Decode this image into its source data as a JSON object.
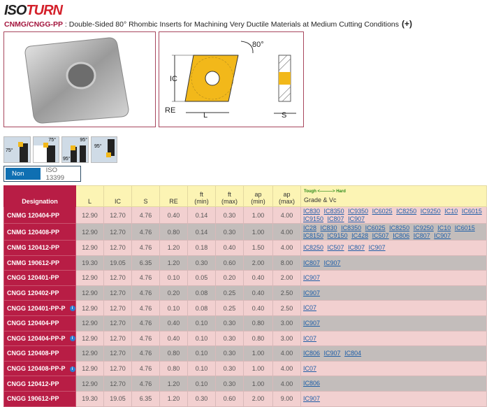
{
  "logo": {
    "part1": "ISO",
    "part2": "TURN"
  },
  "title": {
    "code": "CNMG/CNGG-PP",
    "description": " : Double-Sided 80° Rhombic Inserts for Machining Very Ductile Materials at Medium Cutting Conditions",
    "expand": "(+)"
  },
  "drawing": {
    "angle": "80°",
    "ic": "IC",
    "re": "RE",
    "l": "L",
    "s": "S"
  },
  "views": [
    {
      "angle": "75°"
    },
    {
      "angle": "75°"
    },
    {
      "angle": "95°",
      "angle2": "95°"
    },
    {
      "angle": "95°"
    }
  ],
  "standard_toggle": {
    "selected": "Non ISO",
    "other": "ISO 13399"
  },
  "table": {
    "headers": {
      "designation": "Designation",
      "l": "L",
      "ic": "IC",
      "s": "S",
      "re": "RE",
      "ft_min": "ft\n(min)",
      "ft_max": "ft\n(max)",
      "ap_min": "ap\n(min)",
      "ap_max": "ap\n(max)",
      "grade_scale": "Tough <———> Hard",
      "grade": "Grade & Vc"
    },
    "rows": [
      {
        "designation": "CNMG 120404-PP",
        "info": false,
        "l": "12.90",
        "ic": "12.70",
        "s": "4.76",
        "re": "0.40",
        "ft_min": "0.14",
        "ft_max": "0.30",
        "ap_min": "1.00",
        "ap_max": "4.00",
        "grades": [
          "IC830",
          "IC8350",
          "IC9350",
          "IC6025",
          "IC8250",
          "IC9250",
          "IC10",
          "IC6015",
          "IC9150",
          "IC807",
          "IC907"
        ]
      },
      {
        "designation": "CNMG 120408-PP",
        "info": false,
        "l": "12.90",
        "ic": "12.70",
        "s": "4.76",
        "re": "0.80",
        "ft_min": "0.14",
        "ft_max": "0.30",
        "ap_min": "1.00",
        "ap_max": "4.00",
        "grades": [
          "IC28",
          "IC830",
          "IC8350",
          "IC6025",
          "IC8250",
          "IC9250",
          "IC10",
          "IC6015",
          "IC8150",
          "IC9150",
          "IC428",
          "IC507",
          "IC806",
          "IC807",
          "IC907"
        ]
      },
      {
        "designation": "CNMG 120412-PP",
        "info": false,
        "l": "12.90",
        "ic": "12.70",
        "s": "4.76",
        "re": "1.20",
        "ft_min": "0.18",
        "ft_max": "0.40",
        "ap_min": "1.50",
        "ap_max": "4.00",
        "grades": [
          "IC8250",
          "IC507",
          "IC807",
          "IC907"
        ]
      },
      {
        "designation": "CNMG 190612-PP",
        "info": false,
        "l": "19.30",
        "ic": "19.05",
        "s": "6.35",
        "re": "1.20",
        "ft_min": "0.30",
        "ft_max": "0.60",
        "ap_min": "2.00",
        "ap_max": "8.00",
        "grades": [
          "IC807",
          "IC907"
        ]
      },
      {
        "designation": "CNGG 120401-PP",
        "info": false,
        "l": "12.90",
        "ic": "12.70",
        "s": "4.76",
        "re": "0.10",
        "ft_min": "0.05",
        "ft_max": "0.20",
        "ap_min": "0.40",
        "ap_max": "2.00",
        "grades": [
          "IC907"
        ]
      },
      {
        "designation": "CNGG 120402-PP",
        "info": false,
        "l": "12.90",
        "ic": "12.70",
        "s": "4.76",
        "re": "0.20",
        "ft_min": "0.08",
        "ft_max": "0.25",
        "ap_min": "0.40",
        "ap_max": "2.50",
        "grades": [
          "IC907"
        ]
      },
      {
        "designation": "CNGG 120401-PP-P",
        "info": true,
        "l": "12.90",
        "ic": "12.70",
        "s": "4.76",
        "re": "0.10",
        "ft_min": "0.08",
        "ft_max": "0.25",
        "ap_min": "0.40",
        "ap_max": "2.50",
        "grades": [
          "IC07"
        ]
      },
      {
        "designation": "CNGG 120404-PP",
        "info": false,
        "l": "12.90",
        "ic": "12.70",
        "s": "4.76",
        "re": "0.40",
        "ft_min": "0.10",
        "ft_max": "0.30",
        "ap_min": "0.80",
        "ap_max": "3.00",
        "grades": [
          "IC907"
        ]
      },
      {
        "designation": "CNGG 120404-PP-P",
        "info": true,
        "l": "12.90",
        "ic": "12.70",
        "s": "4.76",
        "re": "0.40",
        "ft_min": "0.10",
        "ft_max": "0.30",
        "ap_min": "0.80",
        "ap_max": "3.00",
        "grades": [
          "IC07"
        ]
      },
      {
        "designation": "CNGG 120408-PP",
        "info": false,
        "l": "12.90",
        "ic": "12.70",
        "s": "4.76",
        "re": "0.80",
        "ft_min": "0.10",
        "ft_max": "0.30",
        "ap_min": "1.00",
        "ap_max": "4.00",
        "grades": [
          "IC806",
          "IC907",
          "IC804"
        ]
      },
      {
        "designation": "CNGG 120408-PP-P",
        "info": true,
        "l": "12.90",
        "ic": "12.70",
        "s": "4.76",
        "re": "0.80",
        "ft_min": "0.10",
        "ft_max": "0.30",
        "ap_min": "1.00",
        "ap_max": "4.00",
        "grades": [
          "IC07"
        ]
      },
      {
        "designation": "CNGG 120412-PP",
        "info": false,
        "l": "12.90",
        "ic": "12.70",
        "s": "4.76",
        "re": "1.20",
        "ft_min": "0.10",
        "ft_max": "0.30",
        "ap_min": "1.00",
        "ap_max": "4.00",
        "grades": [
          "IC806"
        ]
      },
      {
        "designation": "CNGG 190612-PP",
        "info": false,
        "l": "19.30",
        "ic": "19.05",
        "s": "6.35",
        "re": "1.20",
        "ft_min": "0.30",
        "ft_max": "0.60",
        "ap_min": "2.00",
        "ap_max": "9.00",
        "grades": [
          "IC907"
        ]
      }
    ]
  },
  "colors": {
    "brand_red": "#b81d45",
    "header_yellow": "#fcf4b4",
    "row_pink": "#f2d0d0",
    "row_gray": "#c3bdbb",
    "link": "#1f5fa8",
    "toggle_active": "#0f6fb2",
    "insert_yellow": "#f2b81a"
  }
}
